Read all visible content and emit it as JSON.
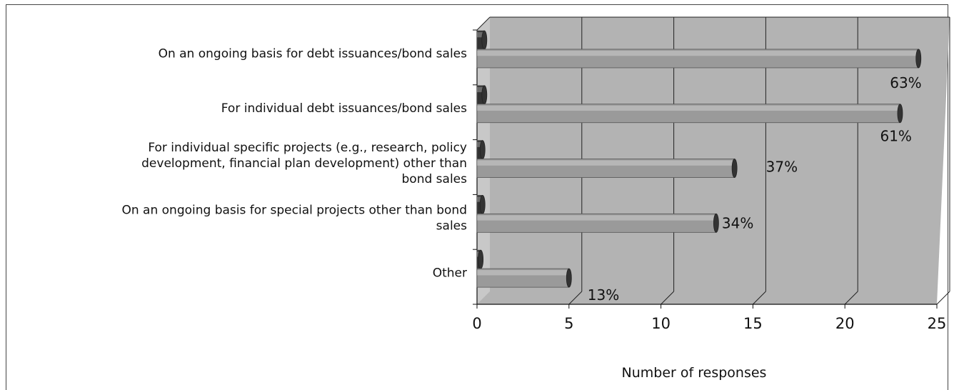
{
  "chart_data": {
    "type": "bar",
    "orientation": "horizontal",
    "style": "3d",
    "categories": [
      [
        "On an ongoing basis for debt issuances/bond sales"
      ],
      [
        "For individual debt issuances/bond sales"
      ],
      [
        "For individual specific projects (e.g., research, policy",
        "development, financial plan development) other than",
        "bond sales"
      ],
      [
        "On an ongoing basis for special projects other than bond",
        "sales"
      ],
      [
        "Other"
      ]
    ],
    "series": [
      {
        "values": [
          24,
          23,
          14,
          13,
          5
        ]
      },
      {
        "values": [
          0.4,
          0.4,
          0.3,
          0.3,
          0.2
        ]
      }
    ],
    "data_labels": [
      "63%",
      "61%",
      "37%",
      "34%",
      "13%"
    ],
    "xlabel": "Number of responses",
    "ylabel": "",
    "xlim": [
      0,
      25
    ],
    "xticks": [
      "0",
      "5",
      "10",
      "15",
      "20",
      "25"
    ],
    "grid": true,
    "legend": false,
    "colors": {
      "plot_back": "#b3b3b3",
      "plot_floor": "#c8c8c8",
      "bar_main": "#9a9a9a",
      "bar_dark": "#333333",
      "gridline": "#222222"
    }
  }
}
